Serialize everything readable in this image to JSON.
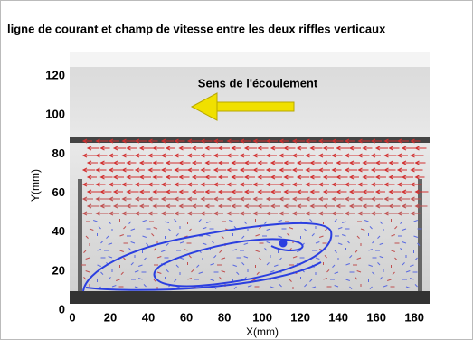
{
  "chart_data": {
    "type": "vector-field",
    "title": "ligne de courant et champ de vitesse entre les deux riffles verticaux",
    "annotation": "Sens de l'écoulement",
    "xlabel": "X(mm)",
    "ylabel": "Y(mm)",
    "xlim": [
      0,
      188
    ],
    "ylim": [
      0,
      133
    ],
    "xticks": [
      0,
      20,
      40,
      60,
      80,
      100,
      120,
      140,
      160,
      180
    ],
    "yticks": [
      0,
      20,
      40,
      60,
      80,
      100,
      120
    ]
  }
}
